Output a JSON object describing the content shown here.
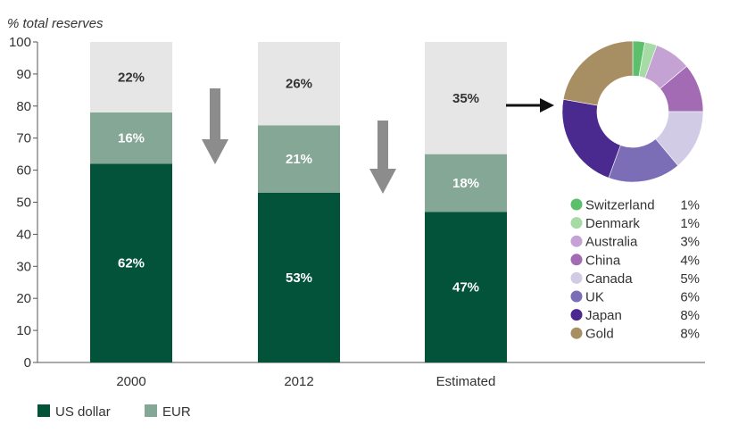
{
  "chart_data": [
    {
      "type": "bar",
      "stacked": true,
      "ylabel": "% total reserves",
      "ylim": [
        0,
        100
      ],
      "yticks": [
        0,
        10,
        20,
        30,
        40,
        50,
        60,
        70,
        80,
        90,
        100
      ],
      "grid": false,
      "categories": [
        "2000",
        "2012",
        "Estimated"
      ],
      "series": [
        {
          "name": "US dollar",
          "values": [
            62,
            53,
            47
          ],
          "labels": [
            "62%",
            "53%",
            "47%"
          ],
          "color": "#02533a",
          "label_color": "#ffffff"
        },
        {
          "name": "EUR",
          "values": [
            16,
            21,
            18
          ],
          "labels": [
            "16%",
            "21%",
            "18%"
          ],
          "color": "#84a796",
          "label_color": "#ffffff"
        },
        {
          "values": [
            22,
            26,
            35
          ],
          "labels": [
            "22%",
            "26%",
            "35%"
          ],
          "color": "#e6e6e6",
          "label_color": "#333333"
        }
      ],
      "legend_position": "bottom-left",
      "annotations": [
        {
          "kind": "down-arrow",
          "between": [
            "2000",
            "2012"
          ]
        },
        {
          "kind": "down-arrow",
          "between": [
            "2012",
            "Estimated"
          ]
        },
        {
          "kind": "right-arrow",
          "from": "Estimated",
          "to": "donut"
        }
      ]
    },
    {
      "type": "pie",
      "style": "donut",
      "legend_position": "bottom",
      "slices": [
        {
          "name": "Switzerland",
          "value": 1,
          "label": "1%",
          "color": "#5cbf6c"
        },
        {
          "name": "Denmark",
          "value": 1,
          "label": "1%",
          "color": "#a7dba6"
        },
        {
          "name": "Australia",
          "value": 3,
          "label": "3%",
          "color": "#c4a2d3"
        },
        {
          "name": "China",
          "value": 4,
          "label": "4%",
          "color": "#a36bb3"
        },
        {
          "name": "Canada",
          "value": 5,
          "label": "5%",
          "color": "#d1cbe6"
        },
        {
          "name": "UK",
          "value": 6,
          "label": "6%",
          "color": "#7c6db7"
        },
        {
          "name": "Japan",
          "value": 8,
          "label": "8%",
          "color": "#4a2a8e"
        },
        {
          "name": "Gold",
          "value": 8,
          "label": "8%",
          "color": "#a88f63"
        }
      ]
    }
  ]
}
